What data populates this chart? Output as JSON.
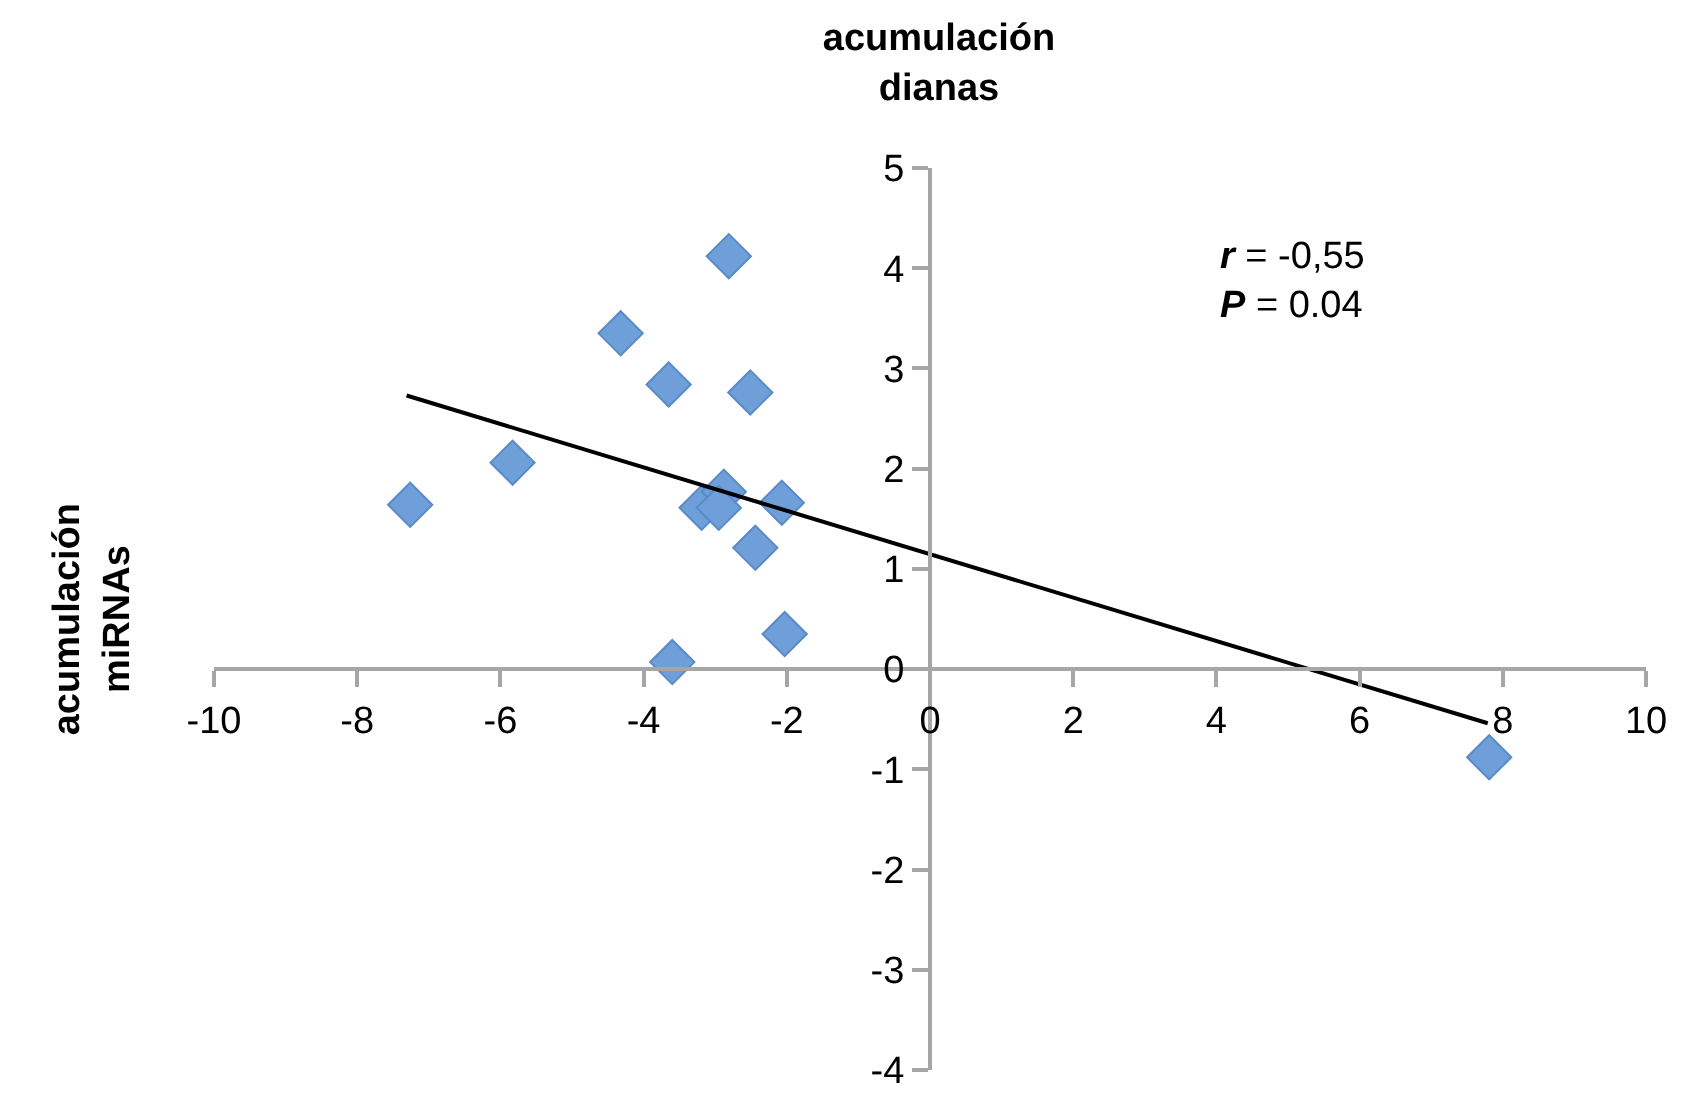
{
  "chart_data": {
    "type": "scatter",
    "title": "acumulación\ndianas",
    "ylabel": "acumulación\nmiRNAs",
    "x": [
      -7.26,
      -5.83,
      -4.32,
      -3.65,
      -2.81,
      -2.51,
      -3.19,
      -2.88,
      -2.95,
      -2.07,
      -2.44,
      -2.03,
      -3.6,
      7.81
    ],
    "series": [
      {
        "color": "#6f9fd8",
        "marker": "diamond",
        "values": [
          1.64,
          2.06,
          3.35,
          2.84,
          4.12,
          2.76,
          1.61,
          1.77,
          1.61,
          1.66,
          1.21,
          0.35,
          0.07,
          -0.88
        ]
      },
      {
        "type": "line",
        "color": "#000000",
        "x": [
          -7.31,
          7.79
        ],
        "values": [
          2.73,
          -0.54
        ]
      }
    ],
    "xlim": [
      -10,
      10
    ],
    "xticks": [
      -10,
      -8,
      -6,
      -4,
      -2,
      0,
      2,
      4,
      6,
      8,
      10
    ],
    "ylim": [
      -4,
      5
    ],
    "yticks": [
      -4,
      -3,
      -2,
      -1,
      0,
      1,
      2,
      3,
      4,
      5
    ],
    "annotations": [
      "r = -0,55\nP = 0.04"
    ]
  }
}
